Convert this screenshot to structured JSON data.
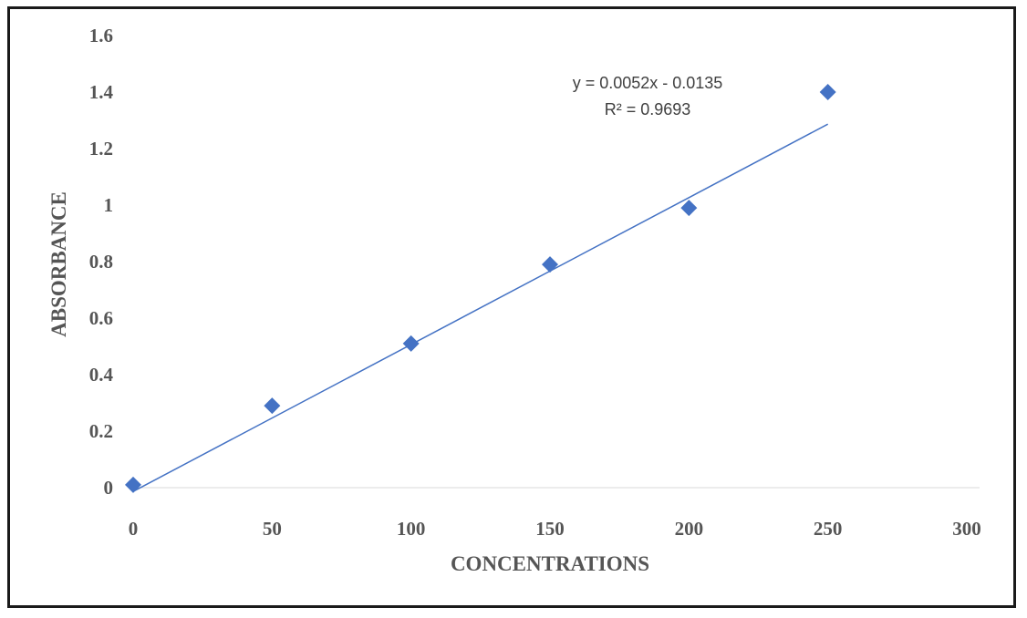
{
  "chart_data": {
    "type": "scatter",
    "title": "",
    "xlabel": "CONCENTRATIONS",
    "ylabel": "ABSORBANCE",
    "xlim": [
      0,
      300
    ],
    "ylim": [
      0,
      1.6
    ],
    "x_ticks": [
      "0",
      "50",
      "100",
      "150",
      "200",
      "250",
      "300"
    ],
    "y_ticks": [
      "0",
      "0.2",
      "0.4",
      "0.6",
      "0.8",
      "1",
      "1.2",
      "1.4",
      "1.6"
    ],
    "grid": false,
    "legend": "none",
    "series": [
      {
        "x": [
          0,
          50,
          100,
          150,
          200,
          250
        ],
        "y": [
          0.01,
          0.29,
          0.51,
          0.79,
          0.99,
          1.4
        ],
        "marker": "diamond",
        "color": "#4472c4"
      }
    ],
    "trendline": {
      "type": "linear",
      "slope": 0.0052,
      "intercept": -0.0135,
      "x_range": [
        0,
        250
      ],
      "color": "#4472c4",
      "equation_label": "y = 0.0052x - 0.0135",
      "r2_label": "R² = 0.9693"
    }
  }
}
